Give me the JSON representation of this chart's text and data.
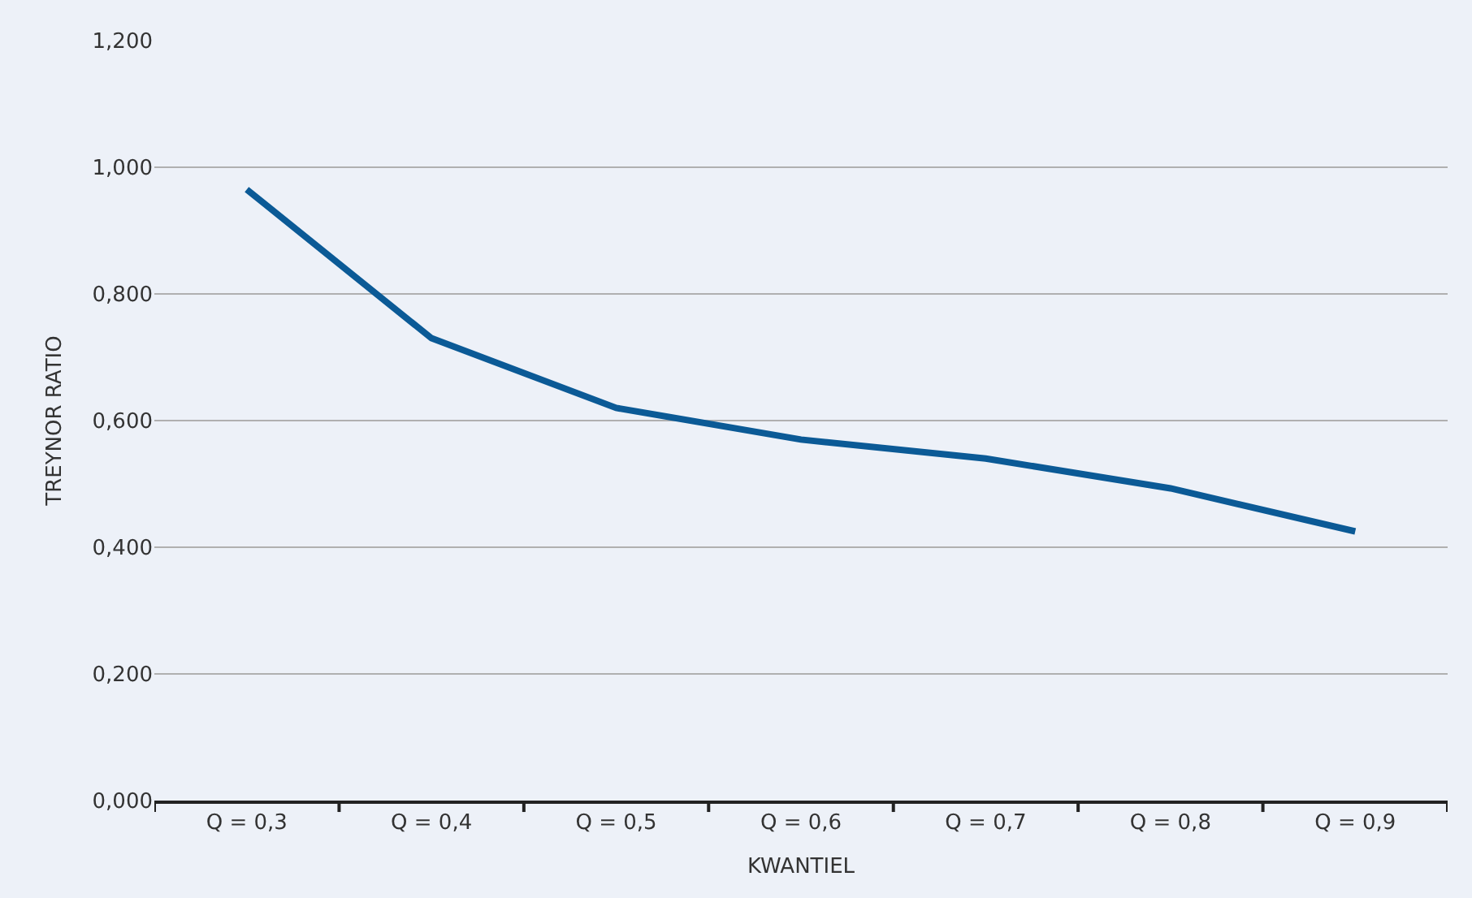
{
  "chart_data": {
    "type": "line",
    "xlabel": "KWANTIEL",
    "ylabel": "TREYNOR RATIO",
    "categories": [
      "Q = 0,3",
      "Q = 0,4",
      "Q = 0,5",
      "Q = 0,6",
      "Q = 0,7",
      "Q = 0,8",
      "Q = 0,9"
    ],
    "series": [
      {
        "color": "#0b5a96",
        "values": [
          0.965,
          0.73,
          0.62,
          0.57,
          0.54,
          0.493,
          0.425
        ]
      }
    ],
    "ylim": [
      0,
      1.2
    ],
    "yticks": [
      {
        "value": 0,
        "label": "0,000"
      },
      {
        "value": 0.2,
        "label": "0,200"
      },
      {
        "value": 0.4,
        "label": "0,400"
      },
      {
        "value": 0.6,
        "label": "0,600"
      },
      {
        "value": 0.8,
        "label": "0,800"
      },
      {
        "value": 1.0,
        "label": "1,000"
      },
      {
        "value": 1.2,
        "label": "1,200"
      }
    ],
    "grid": "y",
    "marker": "none",
    "line_style": "solid"
  }
}
